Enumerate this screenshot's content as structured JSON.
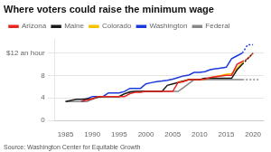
{
  "chart_data": {
    "type": "line",
    "title": "Where voters could raise the minimum wage",
    "source": "Source: Washington Center for Equitable Growth",
    "x": [
      1985,
      1986,
      1987,
      1988,
      1989,
      1990,
      1991,
      1992,
      1993,
      1994,
      1995,
      1996,
      1997,
      1998,
      1999,
      2000,
      2001,
      2002,
      2003,
      2004,
      2005,
      2006,
      2007,
      2008,
      2009,
      2010,
      2011,
      2012,
      2013,
      2014,
      2015,
      2016,
      2017,
      2018,
      2019,
      2020,
      2021
    ],
    "xlim": [
      1983,
      2022
    ],
    "xticks": [
      1985,
      1990,
      1995,
      2000,
      2005,
      2010,
      2015,
      2020
    ],
    "ylim": [
      0,
      14.5
    ],
    "yticks": [
      0,
      4,
      8,
      {
        "value": 12,
        "label": "$12 an hour"
      }
    ],
    "grid": "y",
    "legend": "top",
    "series": [
      {
        "name": "Arizona",
        "color": "#e8251f",
        "line_style": "solid",
        "values": [
          null,
          null,
          null,
          3.35,
          3.65,
          3.8,
          4.25,
          4.25,
          4.25,
          4.25,
          4.25,
          4.25,
          4.75,
          5.0,
          5.0,
          5.15,
          5.15,
          5.15,
          5.15,
          5.15,
          5.15,
          6.75,
          6.9,
          7.25,
          7.25,
          7.25,
          7.35,
          7.65,
          7.8,
          7.9,
          8.05,
          8.05,
          10.0,
          10.5,
          null,
          null,
          null
        ]
      },
      {
        "name": "Arizona",
        "color": "#e8251f",
        "line_style": "dotted",
        "values": [
          null,
          null,
          null,
          null,
          null,
          null,
          null,
          null,
          null,
          null,
          null,
          null,
          null,
          null,
          null,
          null,
          null,
          null,
          null,
          null,
          null,
          null,
          null,
          null,
          null,
          null,
          null,
          null,
          null,
          null,
          null,
          null,
          null,
          10.5,
          11.0,
          12.0,
          null
        ]
      },
      {
        "name": "Maine",
        "color": "#1a1a1a",
        "line_style": "solid",
        "values": [
          3.35,
          3.55,
          3.75,
          3.75,
          3.85,
          3.85,
          4.1,
          4.25,
          4.25,
          4.25,
          4.25,
          4.75,
          5.0,
          5.15,
          5.15,
          5.15,
          5.15,
          5.15,
          5.15,
          6.25,
          6.5,
          6.75,
          7.0,
          7.25,
          7.25,
          7.25,
          7.5,
          7.5,
          7.5,
          7.5,
          7.5,
          7.5,
          9.0,
          10.0,
          null,
          null,
          null
        ]
      },
      {
        "name": "Maine",
        "color": "#1a1a1a",
        "line_style": "dotted",
        "values": [
          null,
          null,
          null,
          null,
          null,
          null,
          null,
          null,
          null,
          null,
          null,
          null,
          null,
          null,
          null,
          null,
          null,
          null,
          null,
          null,
          null,
          null,
          null,
          null,
          null,
          null,
          null,
          null,
          null,
          null,
          null,
          null,
          null,
          10.0,
          11.0,
          12.0,
          null
        ]
      },
      {
        "name": "Colorado",
        "color": "#f5c200",
        "line_style": "solid",
        "values": [
          null,
          null,
          null,
          null,
          null,
          null,
          null,
          null,
          null,
          null,
          null,
          null,
          null,
          null,
          null,
          null,
          null,
          null,
          null,
          null,
          null,
          6.85,
          7.02,
          7.28,
          7.28,
          7.24,
          7.36,
          7.64,
          7.78,
          8.0,
          8.23,
          8.31,
          9.3,
          10.2,
          null,
          null,
          null
        ]
      },
      {
        "name": "Colorado",
        "color": "#f5c200",
        "line_style": "dotted",
        "values": [
          null,
          null,
          null,
          null,
          null,
          null,
          null,
          null,
          null,
          null,
          null,
          null,
          null,
          null,
          null,
          null,
          null,
          null,
          null,
          null,
          null,
          null,
          null,
          null,
          null,
          null,
          null,
          null,
          null,
          null,
          null,
          null,
          null,
          10.2,
          11.1,
          12.0,
          null
        ]
      },
      {
        "name": "Washington",
        "color": "#1a3adb",
        "line_style": "solid",
        "values": [
          null,
          null,
          null,
          3.35,
          3.85,
          4.25,
          4.25,
          4.25,
          4.9,
          4.9,
          4.9,
          5.15,
          5.7,
          5.7,
          5.7,
          6.5,
          6.72,
          6.9,
          7.01,
          7.16,
          7.35,
          7.63,
          7.93,
          8.07,
          8.55,
          8.55,
          8.67,
          9.04,
          9.19,
          9.32,
          9.47,
          11.0,
          11.5,
          12.0,
          null,
          null,
          null
        ]
      },
      {
        "name": "Washington",
        "color": "#1a3adb",
        "line_style": "dotted",
        "values": [
          null,
          null,
          null,
          null,
          null,
          null,
          null,
          null,
          null,
          null,
          null,
          null,
          null,
          null,
          null,
          null,
          null,
          null,
          null,
          null,
          null,
          null,
          null,
          null,
          null,
          null,
          null,
          null,
          null,
          null,
          null,
          null,
          null,
          12.0,
          13.5,
          13.5,
          null
        ]
      },
      {
        "name": "Federal",
        "color": "#888888",
        "line_style": "solid",
        "values": [
          3.35,
          3.35,
          3.35,
          3.35,
          3.35,
          3.8,
          4.25,
          4.25,
          4.25,
          4.25,
          4.25,
          4.75,
          5.15,
          5.15,
          5.15,
          5.15,
          5.15,
          5.15,
          5.15,
          5.15,
          5.15,
          5.15,
          5.85,
          6.55,
          7.25,
          7.25,
          7.25,
          7.25,
          7.25,
          7.25,
          7.25,
          7.25,
          7.25,
          7.25,
          null,
          null,
          null
        ]
      },
      {
        "name": "Federal",
        "color": "#888888",
        "line_style": "dotted",
        "values": [
          null,
          null,
          null,
          null,
          null,
          null,
          null,
          null,
          null,
          null,
          null,
          null,
          null,
          null,
          null,
          null,
          null,
          null,
          null,
          null,
          null,
          null,
          null,
          null,
          null,
          null,
          null,
          null,
          null,
          null,
          null,
          null,
          null,
          7.25,
          7.25,
          7.25,
          7.25
        ]
      }
    ]
  }
}
